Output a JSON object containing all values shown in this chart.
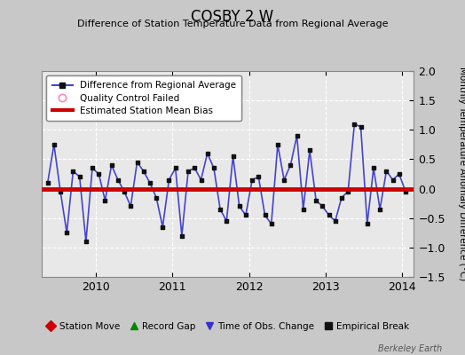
{
  "title": "COSBY 2 W",
  "subtitle": "Difference of Station Temperature Data from Regional Average",
  "ylabel": "Monthly Temperature Anomaly Difference (°C)",
  "bias": 0.0,
  "xlim_left": 2009.3,
  "xlim_right": 2014.15,
  "ylim": [
    -1.5,
    2.0
  ],
  "yticks": [
    -1.5,
    -1.0,
    -0.5,
    0.0,
    0.5,
    1.0,
    1.5,
    2.0
  ],
  "xticks": [
    2010,
    2011,
    2012,
    2013,
    2014
  ],
  "background_color": "#e8e8e8",
  "line_color": "#4444cc",
  "marker_color": "#111111",
  "bias_color": "#cc0000",
  "fig_bg_color": "#c8c8c8",
  "watermark": "Berkeley Earth",
  "times": [
    2009.375,
    2009.458,
    2009.542,
    2009.625,
    2009.708,
    2009.792,
    2009.875,
    2009.958,
    2010.042,
    2010.125,
    2010.208,
    2010.292,
    2010.375,
    2010.458,
    2010.542,
    2010.625,
    2010.708,
    2010.792,
    2010.875,
    2010.958,
    2011.042,
    2011.125,
    2011.208,
    2011.292,
    2011.375,
    2011.458,
    2011.542,
    2011.625,
    2011.708,
    2011.792,
    2011.875,
    2011.958,
    2012.042,
    2012.125,
    2012.208,
    2012.292,
    2012.375,
    2012.458,
    2012.542,
    2012.625,
    2012.708,
    2012.792,
    2012.875,
    2012.958,
    2013.042,
    2013.125,
    2013.208,
    2013.292,
    2013.375,
    2013.458,
    2013.542,
    2013.625,
    2013.708,
    2013.792,
    2013.875,
    2013.958,
    2014.042
  ],
  "values": [
    0.1,
    0.75,
    -0.05,
    -0.75,
    0.3,
    0.2,
    -0.9,
    0.35,
    0.25,
    -0.2,
    0.4,
    0.15,
    -0.05,
    -0.3,
    0.45,
    0.3,
    0.1,
    -0.15,
    -0.65,
    0.15,
    0.35,
    -0.8,
    0.3,
    0.35,
    0.15,
    0.6,
    0.35,
    -0.35,
    -0.55,
    0.55,
    -0.3,
    -0.45,
    0.15,
    0.2,
    -0.45,
    -0.6,
    0.75,
    0.15,
    0.4,
    0.9,
    -0.35,
    0.65,
    -0.2,
    -0.3,
    -0.45,
    -0.55,
    -0.15,
    -0.05,
    1.1,
    1.05,
    -0.6,
    0.35,
    -0.35,
    0.3,
    0.15,
    0.25,
    -0.05
  ]
}
